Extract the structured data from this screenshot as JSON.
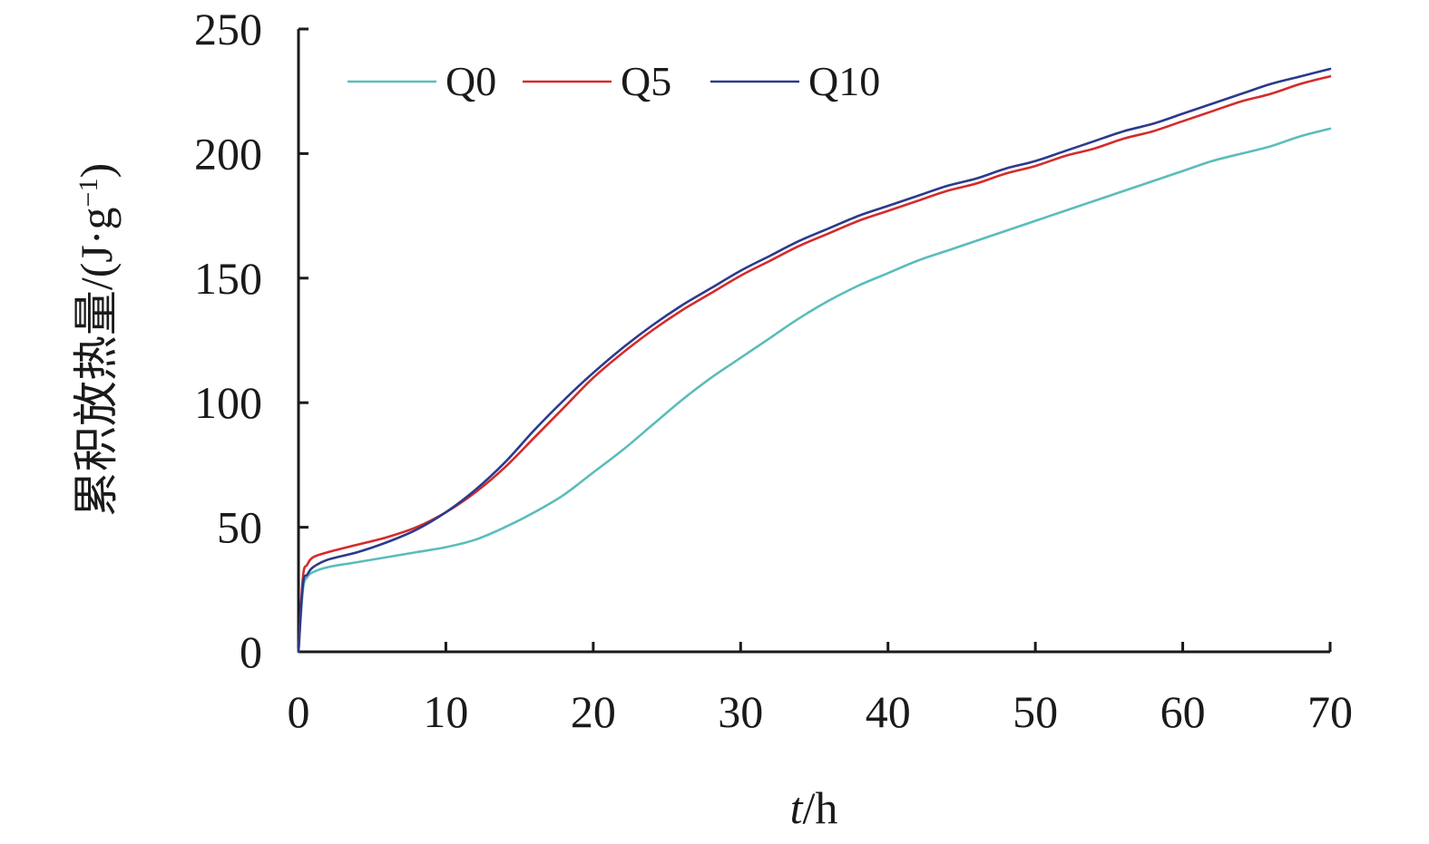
{
  "chart_data": {
    "type": "line",
    "title": "",
    "xlabel_italic": "t",
    "xlabel_unit": "/h",
    "ylabel_main": "累积放热量/(J·g",
    "ylabel_sup": "−1",
    "ylabel_close": ")",
    "xlim": [
      0,
      70
    ],
    "ylim": [
      0,
      250
    ],
    "x_ticks": [
      0,
      10,
      20,
      30,
      40,
      50,
      60,
      70
    ],
    "y_ticks": [
      0,
      50,
      100,
      150,
      200,
      250
    ],
    "x_tick_labels": [
      "0",
      "10",
      "20",
      "30",
      "40",
      "50",
      "60",
      "70"
    ],
    "y_tick_labels": [
      "0",
      "50",
      "100",
      "150",
      "200",
      "250"
    ],
    "grid": false,
    "legend_position": "top-left",
    "series": [
      {
        "name": "Q0",
        "color": "#5bbcbc",
        "points": [
          [
            0,
            0
          ],
          [
            0.3,
            25
          ],
          [
            0.6,
            30
          ],
          [
            1,
            32
          ],
          [
            2,
            34
          ],
          [
            4,
            36
          ],
          [
            6,
            38
          ],
          [
            8,
            40
          ],
          [
            10,
            42
          ],
          [
            12,
            45
          ],
          [
            14,
            50
          ],
          [
            16,
            56
          ],
          [
            18,
            63
          ],
          [
            20,
            72
          ],
          [
            22,
            81
          ],
          [
            24,
            91
          ],
          [
            26,
            101
          ],
          [
            28,
            110
          ],
          [
            30,
            118
          ],
          [
            32,
            126
          ],
          [
            34,
            134
          ],
          [
            36,
            141
          ],
          [
            38,
            147
          ],
          [
            40,
            152
          ],
          [
            42,
            157
          ],
          [
            44,
            161
          ],
          [
            46,
            165
          ],
          [
            48,
            169
          ],
          [
            50,
            173
          ],
          [
            52,
            177
          ],
          [
            54,
            181
          ],
          [
            56,
            185
          ],
          [
            58,
            189
          ],
          [
            60,
            193
          ],
          [
            62,
            197
          ],
          [
            64,
            200
          ],
          [
            66,
            203
          ],
          [
            68,
            207
          ],
          [
            70,
            210
          ]
        ]
      },
      {
        "name": "Q5",
        "color": "#d42b2b",
        "points": [
          [
            0,
            0
          ],
          [
            0.3,
            30
          ],
          [
            0.6,
            35
          ],
          [
            1,
            38
          ],
          [
            2,
            40
          ],
          [
            4,
            43
          ],
          [
            6,
            46
          ],
          [
            8,
            50
          ],
          [
            10,
            56
          ],
          [
            12,
            64
          ],
          [
            14,
            74
          ],
          [
            16,
            86
          ],
          [
            18,
            98
          ],
          [
            20,
            110
          ],
          [
            22,
            120
          ],
          [
            24,
            129
          ],
          [
            26,
            137
          ],
          [
            28,
            144
          ],
          [
            30,
            151
          ],
          [
            32,
            157
          ],
          [
            34,
            163
          ],
          [
            36,
            168
          ],
          [
            38,
            173
          ],
          [
            40,
            177
          ],
          [
            42,
            181
          ],
          [
            44,
            185
          ],
          [
            46,
            188
          ],
          [
            48,
            192
          ],
          [
            50,
            195
          ],
          [
            52,
            199
          ],
          [
            54,
            202
          ],
          [
            56,
            206
          ],
          [
            58,
            209
          ],
          [
            60,
            213
          ],
          [
            62,
            217
          ],
          [
            64,
            221
          ],
          [
            66,
            224
          ],
          [
            68,
            228
          ],
          [
            70,
            231
          ]
        ]
      },
      {
        "name": "Q10",
        "color": "#2b3a8c",
        "points": [
          [
            0,
            0
          ],
          [
            0.3,
            27
          ],
          [
            0.6,
            31
          ],
          [
            1,
            34
          ],
          [
            2,
            37
          ],
          [
            4,
            40
          ],
          [
            6,
            44
          ],
          [
            8,
            49
          ],
          [
            10,
            56
          ],
          [
            12,
            65
          ],
          [
            14,
            76
          ],
          [
            16,
            89
          ],
          [
            18,
            101
          ],
          [
            20,
            112
          ],
          [
            22,
            122
          ],
          [
            24,
            131
          ],
          [
            26,
            139
          ],
          [
            28,
            146
          ],
          [
            30,
            153
          ],
          [
            32,
            159
          ],
          [
            34,
            165
          ],
          [
            36,
            170
          ],
          [
            38,
            175
          ],
          [
            40,
            179
          ],
          [
            42,
            183
          ],
          [
            44,
            187
          ],
          [
            46,
            190
          ],
          [
            48,
            194
          ],
          [
            50,
            197
          ],
          [
            52,
            201
          ],
          [
            54,
            205
          ],
          [
            56,
            209
          ],
          [
            58,
            212
          ],
          [
            60,
            216
          ],
          [
            62,
            220
          ],
          [
            64,
            224
          ],
          [
            66,
            228
          ],
          [
            68,
            231
          ],
          [
            70,
            234
          ]
        ]
      }
    ]
  }
}
